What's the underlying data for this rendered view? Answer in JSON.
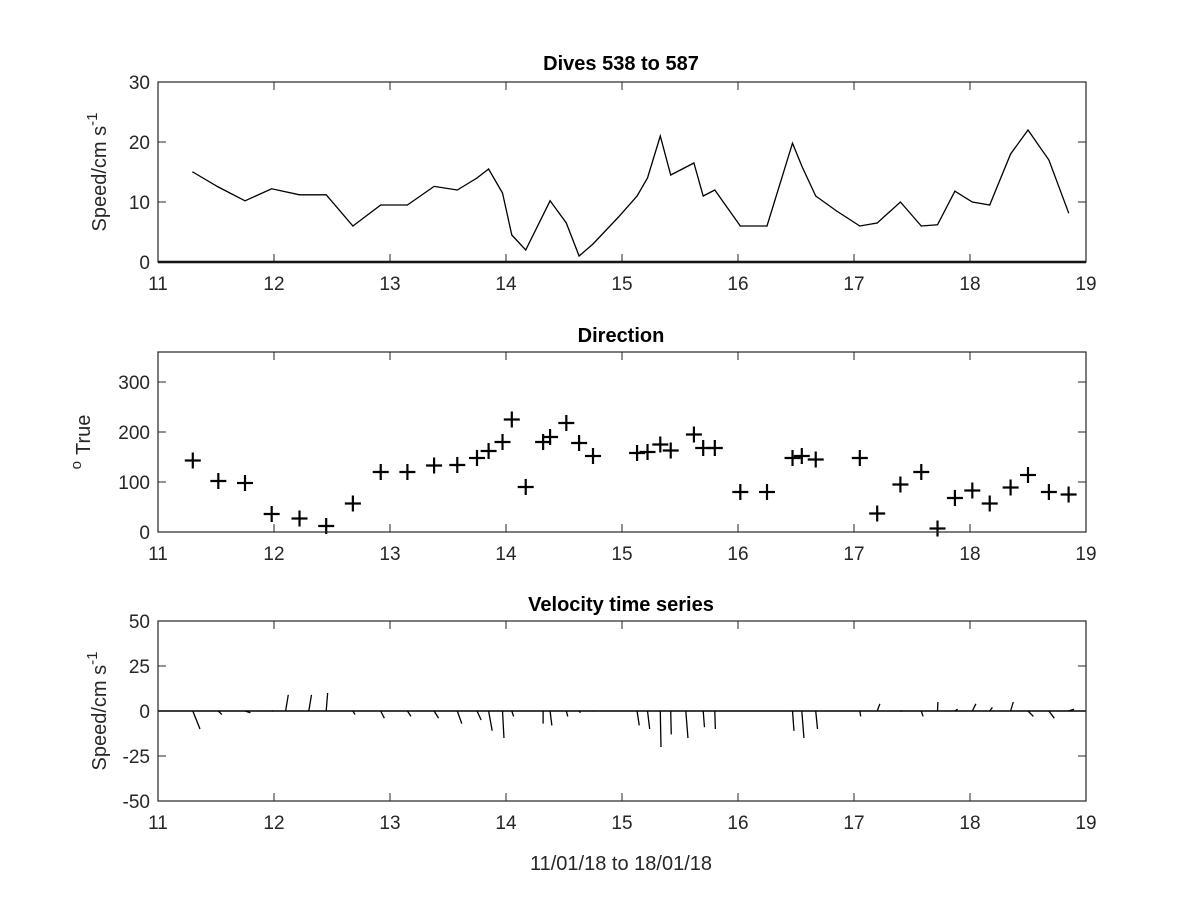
{
  "chart_data": [
    {
      "type": "line",
      "title": "Dives 538 to 587",
      "ylabel": "Speed/cm s",
      "ylabel_superscript": "-1",
      "xlabel": "",
      "xlim": [
        11,
        19
      ],
      "ylim": [
        0,
        30
      ],
      "xticks": [
        "11",
        "12",
        "13",
        "14",
        "15",
        "16",
        "17",
        "18",
        "19"
      ],
      "yticks": [
        "0",
        "10",
        "20",
        "30"
      ],
      "grid": false,
      "series": [
        {
          "x": [
            11.3,
            11.52,
            11.75,
            11.98,
            12.22,
            12.45,
            12.68,
            12.92,
            13.15,
            13.38,
            13.58,
            13.75,
            13.85,
            13.97,
            14.05,
            14.17,
            14.38,
            14.52,
            14.63,
            14.75,
            14.97,
            15.13,
            15.22,
            15.33,
            15.42,
            15.62,
            15.7,
            15.8,
            16.02,
            16.25,
            16.47,
            16.55,
            16.67,
            16.85,
            17.05,
            17.2,
            17.4,
            17.58,
            17.72,
            17.87,
            18.02,
            18.17,
            18.35,
            18.5,
            18.68,
            18.85
          ],
          "values": [
            15,
            12.5,
            10.2,
            12.2,
            11.2,
            11.2,
            6,
            9.5,
            9.5,
            12.6,
            12,
            14,
            15.5,
            11.5,
            4.5,
            2,
            10.2,
            6.5,
            1,
            3,
            7.5,
            11,
            14,
            21,
            14.5,
            16.5,
            11,
            12,
            6,
            6,
            19.8,
            16,
            11,
            8.5,
            6,
            6.5,
            10,
            6,
            6.2,
            11.8,
            10,
            9.5,
            18,
            22,
            17,
            8.2
          ]
        }
      ]
    },
    {
      "type": "scatter",
      "title": "Direction",
      "ylabel": "True",
      "ylabel_superscript": "o",
      "xlabel": "",
      "xlim": [
        11,
        19
      ],
      "ylim": [
        0,
        360
      ],
      "xticks": [
        "11",
        "12",
        "13",
        "14",
        "15",
        "16",
        "17",
        "18",
        "19"
      ],
      "yticks": [
        "0",
        "100",
        "200",
        "300"
      ],
      "grid": false,
      "series": [
        {
          "x": [
            11.3,
            11.52,
            11.75,
            11.98,
            12.22,
            12.45,
            12.68,
            12.92,
            13.15,
            13.38,
            13.58,
            13.75,
            13.85,
            13.97,
            14.05,
            14.17,
            14.32,
            14.38,
            14.52,
            14.63,
            14.75,
            15.13,
            15.22,
            15.33,
            15.42,
            15.62,
            15.7,
            15.8,
            16.02,
            16.25,
            16.47,
            16.55,
            16.67,
            17.05,
            17.2,
            17.4,
            17.58,
            17.72,
            17.87,
            18.02,
            18.17,
            18.35,
            18.5,
            18.68,
            18.85
          ],
          "values": [
            143,
            102,
            98,
            36,
            27,
            12,
            57,
            120,
            120,
            133,
            134,
            148,
            162,
            180,
            225,
            90,
            180,
            190,
            218,
            178,
            152,
            158,
            160,
            175,
            163,
            195,
            168,
            168,
            80,
            80,
            148,
            152,
            145,
            148,
            37,
            95,
            120,
            7,
            68,
            83,
            57,
            89,
            114,
            80,
            75
          ]
        }
      ]
    },
    {
      "type": "quiver",
      "title": "Velocity time series",
      "ylabel": "Speed/cm s",
      "ylabel_superscript": "-1",
      "xlabel": "11/01/18 to 18/01/18",
      "xlim": [
        11,
        19
      ],
      "ylim": [
        -50,
        50
      ],
      "xticks": [
        "11",
        "12",
        "13",
        "14",
        "15",
        "16",
        "17",
        "18",
        "19"
      ],
      "yticks": [
        "-50",
        "-25",
        "0",
        "25",
        "50"
      ],
      "grid": false,
      "series": [
        {
          "x": [
            11.3,
            11.52,
            11.75,
            11.98,
            12.1,
            12.3,
            12.45,
            12.68,
            12.92,
            13.15,
            13.38,
            13.58,
            13.75,
            13.85,
            13.97,
            14.05,
            14.32,
            14.38,
            14.52,
            14.63,
            14.75,
            15.13,
            15.22,
            15.33,
            15.42,
            15.55,
            15.7,
            15.8,
            16.02,
            16.25,
            16.47,
            16.55,
            16.67,
            17.05,
            17.2,
            17.4,
            17.58,
            17.72,
            17.87,
            18.02,
            18.17,
            18.35,
            18.5,
            18.68,
            18.85
          ],
          "u": [
            4,
            2,
            3,
            0.8,
            1.5,
            1.5,
            0.8,
            1.2,
            2,
            2,
            2.5,
            2.5,
            2.3,
            2,
            0.8,
            1,
            0,
            1,
            0.8,
            0.7,
            0.5,
            1.2,
            1.2,
            0.4,
            0.3,
            1.2,
            0.7,
            0.3,
            0,
            0,
            0.8,
            1.2,
            1,
            0.5,
            1.5,
            1,
            1,
            0.2,
            1.5,
            2,
            1.5,
            1.5,
            3,
            3,
            3
          ],
          "v": [
            -10,
            -2,
            -1,
            0,
            9,
            9,
            10,
            -2,
            -4,
            -3,
            -4,
            -7,
            -5,
            -11,
            -15,
            -3,
            -7,
            -8,
            -3,
            -1,
            0,
            -8,
            -10,
            -20,
            -13,
            -15,
            -9,
            -10,
            0,
            0,
            -11,
            -15,
            -10,
            -3,
            4,
            0,
            -3,
            5,
            1,
            4,
            2,
            5,
            -3,
            -4,
            1
          ]
        }
      ]
    }
  ]
}
